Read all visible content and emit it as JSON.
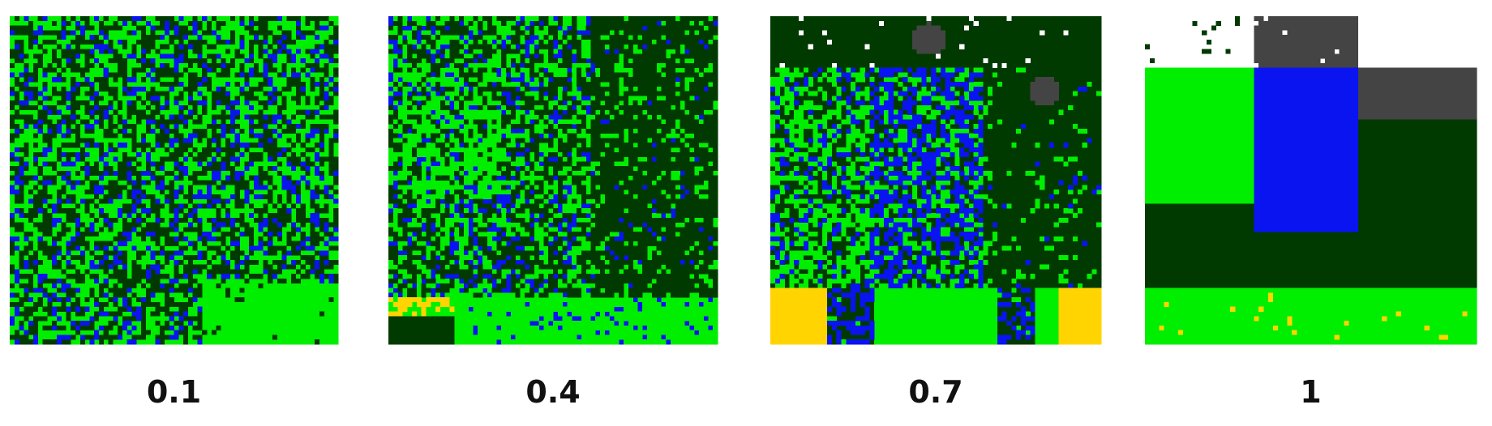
{
  "panels": [
    {
      "label": "0.1"
    },
    {
      "label": "0.4"
    },
    {
      "label": "0.7"
    },
    {
      "label": "1"
    }
  ]
}
